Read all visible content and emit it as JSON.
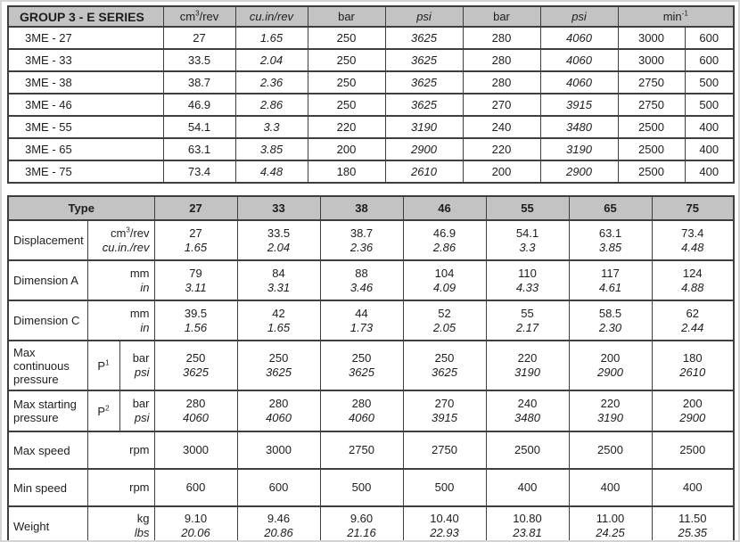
{
  "colors": {
    "header_bg": "#c3c3c3",
    "border_dark": "#3e3e3e",
    "page_border": "#d4d4d4",
    "text": "#1d1d1d"
  },
  "table1": {
    "title": "GROUP 3 - E SERIES",
    "unit_headers": [
      {
        "pre": "cm",
        "sup": "3",
        "post": "/rev"
      },
      {
        "pre": "cu.in/rev",
        "italic": true
      },
      {
        "pre": "bar"
      },
      {
        "pre": "psi",
        "italic": true
      },
      {
        "pre": "bar"
      },
      {
        "pre": "psi",
        "italic": true
      },
      {
        "pre": "min",
        "sup": "-1",
        "span": 2
      }
    ],
    "italic_value_cols": [
      1,
      3,
      5
    ],
    "rows": [
      {
        "model": "3ME - 27",
        "values": [
          "27",
          "1.65",
          "250",
          "3625",
          "280",
          "4060",
          "3000",
          "600"
        ]
      },
      {
        "model": "3ME - 33",
        "values": [
          "33.5",
          "2.04",
          "250",
          "3625",
          "280",
          "4060",
          "3000",
          "600"
        ]
      },
      {
        "model": "3ME - 38",
        "values": [
          "38.7",
          "2.36",
          "250",
          "3625",
          "280",
          "4060",
          "2750",
          "500"
        ]
      },
      {
        "model": "3ME - 46",
        "values": [
          "46.9",
          "2.86",
          "250",
          "3625",
          "270",
          "3915",
          "2750",
          "500"
        ]
      },
      {
        "model": "3ME - 55",
        "values": [
          "54.1",
          "3.3",
          "220",
          "3190",
          "240",
          "3480",
          "2500",
          "400"
        ]
      },
      {
        "model": "3ME - 65",
        "values": [
          "63.1",
          "3.85",
          "200",
          "2900",
          "220",
          "3190",
          "2500",
          "400"
        ]
      },
      {
        "model": "3ME - 75",
        "values": [
          "73.4",
          "4.48",
          "180",
          "2610",
          "200",
          "2900",
          "2500",
          "400"
        ]
      }
    ]
  },
  "table2": {
    "type_header": "Type",
    "col_headers": [
      "27",
      "33",
      "38",
      "46",
      "55",
      "65",
      "75"
    ],
    "rows": [
      {
        "label": "Displacement",
        "units": [
          {
            "pre": "cm",
            "sup": "3",
            "post": "/rev"
          },
          {
            "pre": "cu.in./rev",
            "italic": true
          }
        ],
        "values": [
          [
            "27",
            "1.65"
          ],
          [
            "33.5",
            "2.04"
          ],
          [
            "38.7",
            "2.36"
          ],
          [
            "46.9",
            "2.86"
          ],
          [
            "54.1",
            "3.3"
          ],
          [
            "63.1",
            "3.85"
          ],
          [
            "73.4",
            "4.48"
          ]
        ]
      },
      {
        "label": "Dimension A",
        "units": [
          {
            "pre": "mm"
          },
          {
            "pre": "in",
            "italic": true
          }
        ],
        "values": [
          [
            "79",
            "3.11"
          ],
          [
            "84",
            "3.31"
          ],
          [
            "88",
            "3.46"
          ],
          [
            "104",
            "4.09"
          ],
          [
            "110",
            "4.33"
          ],
          [
            "117",
            "4.61"
          ],
          [
            "124",
            "4.88"
          ]
        ]
      },
      {
        "label": "Dimension C",
        "units": [
          {
            "pre": "mm"
          },
          {
            "pre": "in",
            "italic": true
          }
        ],
        "values": [
          [
            "39.5",
            "1.56"
          ],
          [
            "42",
            "1.65"
          ],
          [
            "44",
            "1.73"
          ],
          [
            "52",
            "2.05"
          ],
          [
            "55",
            "2.17"
          ],
          [
            "58.5",
            "2.30"
          ],
          [
            "62",
            "2.44"
          ]
        ]
      },
      {
        "label": "Max continuous pressure",
        "p": {
          "pre": "P",
          "sup": "1"
        },
        "units": [
          {
            "pre": "bar"
          },
          {
            "pre": "psi",
            "italic": true
          }
        ],
        "values": [
          [
            "250",
            "3625"
          ],
          [
            "250",
            "3625"
          ],
          [
            "250",
            "3625"
          ],
          [
            "250",
            "3625"
          ],
          [
            "220",
            "3190"
          ],
          [
            "200",
            "2900"
          ],
          [
            "180",
            "2610"
          ]
        ]
      },
      {
        "label": "Max starting pressure",
        "p": {
          "pre": "P",
          "sup": "2"
        },
        "units": [
          {
            "pre": "bar"
          },
          {
            "pre": "psi",
            "italic": true
          }
        ],
        "values": [
          [
            "280",
            "4060"
          ],
          [
            "280",
            "4060"
          ],
          [
            "280",
            "4060"
          ],
          [
            "270",
            "3915"
          ],
          [
            "240",
            "3480"
          ],
          [
            "220",
            "3190"
          ],
          [
            "200",
            "2900"
          ]
        ]
      },
      {
        "label": "Max speed",
        "units": [
          {
            "pre": "rpm"
          }
        ],
        "values": [
          [
            "3000"
          ],
          [
            "3000"
          ],
          [
            "2750"
          ],
          [
            "2750"
          ],
          [
            "2500"
          ],
          [
            "2500"
          ],
          [
            "2500"
          ]
        ]
      },
      {
        "label": "Min speed",
        "units": [
          {
            "pre": "rpm"
          }
        ],
        "values": [
          [
            "600"
          ],
          [
            "600"
          ],
          [
            "500"
          ],
          [
            "500"
          ],
          [
            "400"
          ],
          [
            "400"
          ],
          [
            "400"
          ]
        ]
      },
      {
        "label": "Weight",
        "units": [
          {
            "pre": "kg"
          },
          {
            "pre": "lbs",
            "italic": true
          }
        ],
        "values": [
          [
            "9.10",
            "20.06"
          ],
          [
            "9.46",
            "20.86"
          ],
          [
            "9.60",
            "21.16"
          ],
          [
            "10.40",
            "22.93"
          ],
          [
            "10.80",
            "23.81"
          ],
          [
            "11.00",
            "24.25"
          ],
          [
            "11.50",
            "25.35"
          ]
        ]
      }
    ]
  }
}
